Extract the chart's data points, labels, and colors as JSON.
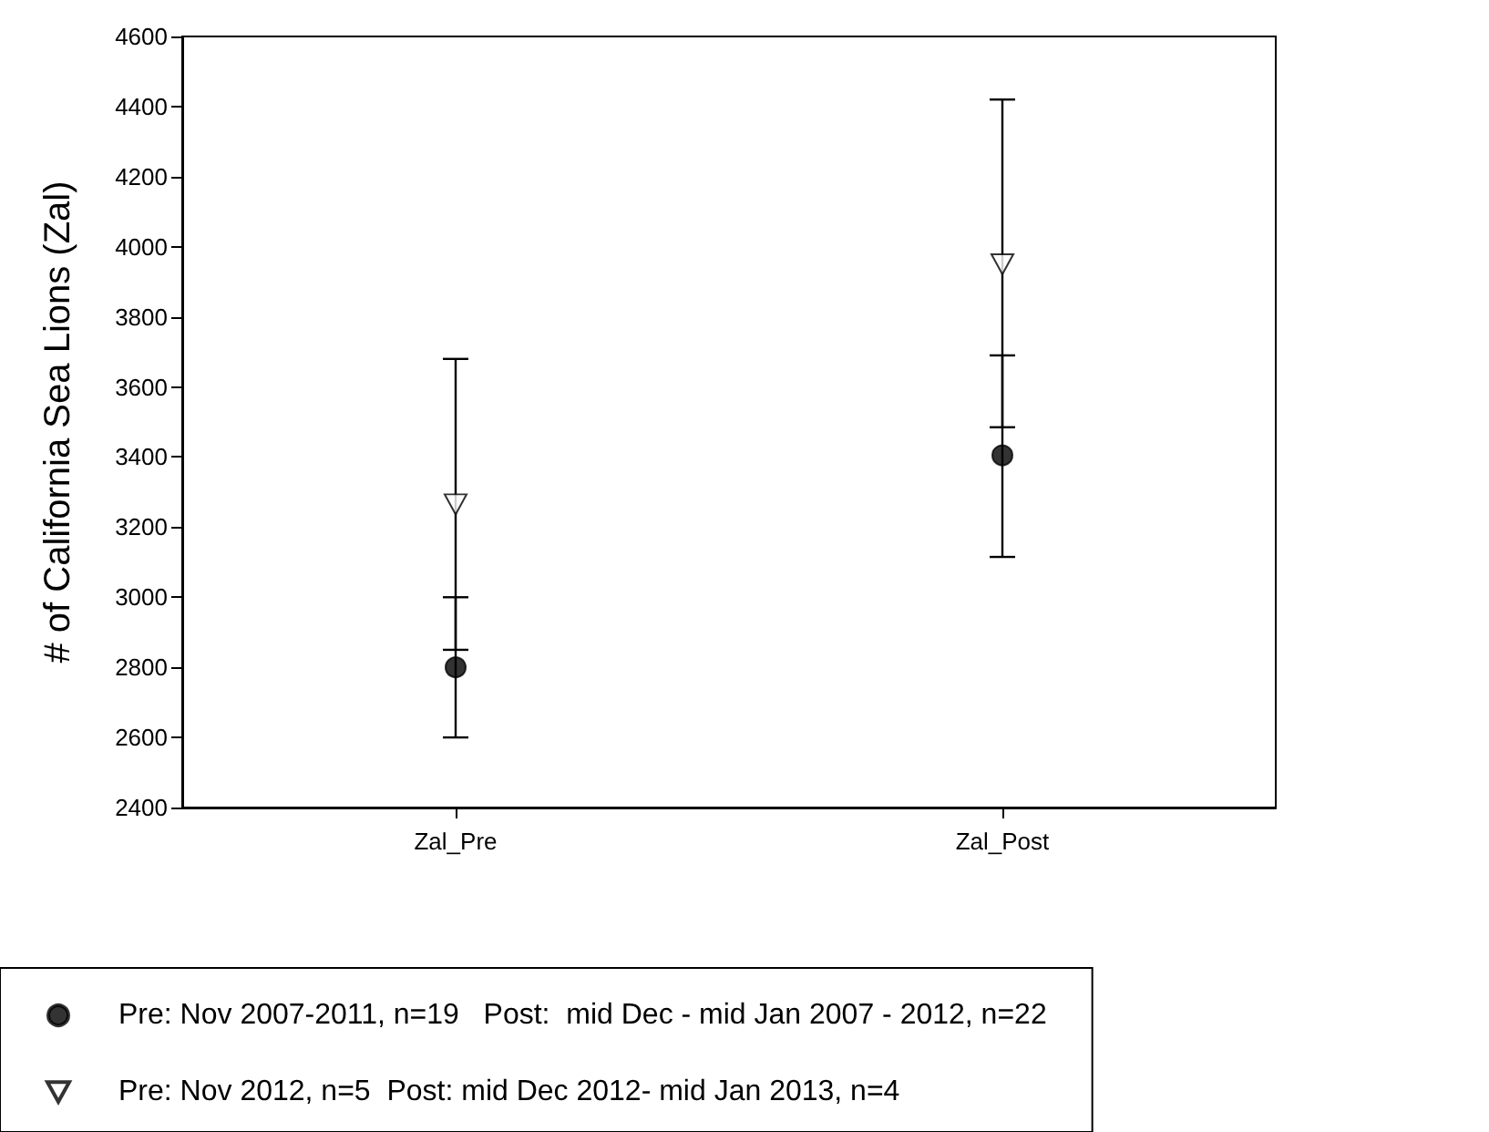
{
  "chart_data": {
    "type": "scatter",
    "ylabel": "# of California Sea Lions (Zal)",
    "categories": [
      "Zal_Pre",
      "Zal_Post"
    ],
    "series": [
      {
        "name": "Pre: Nov 2007-2011, n=19   Post:  mid Dec - mid Jan 2007 - 2012, n=22",
        "color": "#000000",
        "marker": "circle",
        "values": [
          2800,
          3405
        ],
        "errors": [
          [
            2600,
            3000
          ],
          [
            3115,
            3690
          ]
        ]
      },
      {
        "name": "Pre: Nov 2012, n=5  Post: mid Dec 2012- mid Jan 2013, n=4",
        "color": "#000000",
        "marker": "triangle",
        "values": [
          3265,
          3950
        ],
        "errors": [
          [
            2850,
            3680
          ],
          [
            3485,
            4420
          ]
        ]
      }
    ],
    "ylim": [
      2400,
      4600
    ],
    "yticks": [
      2400,
      2600,
      2800,
      3000,
      3200,
      3400,
      3600,
      3800,
      4000,
      4200,
      4400,
      4600
    ],
    "grid": false,
    "legend": "bottom"
  }
}
